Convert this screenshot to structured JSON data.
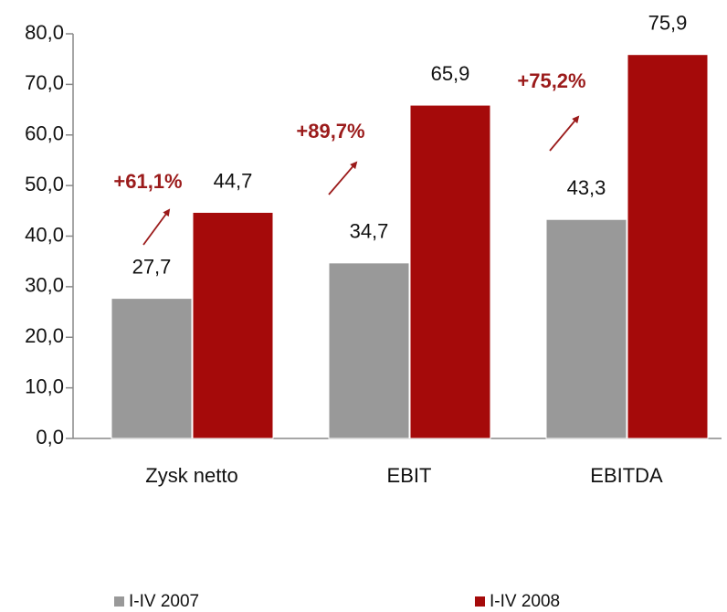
{
  "chart_data": {
    "type": "bar",
    "categories": [
      "Zysk netto",
      "EBIT",
      "EBITDA"
    ],
    "series": [
      {
        "name": "I-IV 2007",
        "color": "#999999",
        "values": [
          27.7,
          34.7,
          43.3
        ],
        "value_labels": [
          "27,7",
          "34,7",
          "43,3"
        ]
      },
      {
        "name": "I-IV 2008",
        "color": "#a50a0a",
        "values": [
          44.7,
          65.9,
          75.9
        ],
        "value_labels": [
          "44,7",
          "65,9",
          "75,9"
        ]
      }
    ],
    "annotations": [
      "+61,1%",
      "+89,7%",
      "+75,2%"
    ],
    "annotation_color": "#9b1b1b",
    "ylim": [
      0,
      80
    ],
    "yticks": [
      {
        "value": 0,
        "label": "0,0"
      },
      {
        "value": 10,
        "label": "10,0"
      },
      {
        "value": 20,
        "label": "20,0"
      },
      {
        "value": 30,
        "label": "30,0"
      },
      {
        "value": 40,
        "label": "40,0"
      },
      {
        "value": 50,
        "label": "50,0"
      },
      {
        "value": 60,
        "label": "60,0"
      },
      {
        "value": 70,
        "label": "70,0"
      },
      {
        "value": 80,
        "label": "80,0"
      }
    ],
    "grid": false,
    "legend": "bottom"
  }
}
